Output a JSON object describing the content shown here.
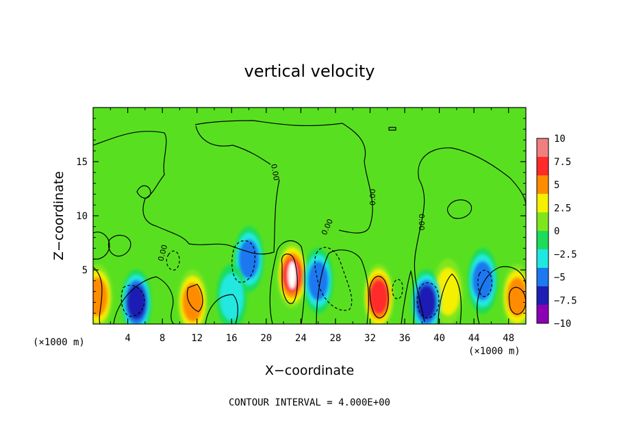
{
  "chart_data": {
    "type": "heatmap",
    "title": "vertical velocity",
    "xlabel": "X−coordinate",
    "ylabel": "Z−coordinate",
    "x_unit_left": "(×1000 m)",
    "x_unit_right": "(×1000 m)",
    "footer": "CONTOUR INTERVAL = 4.000E+00",
    "x_ticks": [
      4,
      8,
      12,
      16,
      20,
      24,
      28,
      32,
      36,
      40,
      44,
      48
    ],
    "x_tick_labels": [
      "4",
      "8",
      "12",
      "16",
      "20",
      "24",
      "28",
      "32",
      "36",
      "40",
      "44",
      "48"
    ],
    "y_ticks": [
      5,
      10,
      15
    ],
    "y_tick_labels": [
      "5",
      "10",
      "15"
    ],
    "xlim": [
      0,
      50
    ],
    "ylim": [
      0,
      20
    ],
    "colorbar": {
      "levels": [
        10,
        7.5,
        5,
        2.5,
        0,
        -2.5,
        -5,
        -7.5,
        -10
      ],
      "labels": [
        "10",
        "7.5",
        "5",
        "2.5",
        "0",
        "−2.5",
        "−5",
        "−7.5",
        "−10"
      ],
      "colors": [
        "#f08080",
        "#ff2a2a",
        "#ff8c00",
        "#f5f000",
        "#7fe61e",
        "#1edc5a",
        "#20e8e0",
        "#1e78f0",
        "#1e1eb4",
        "#8c00b4"
      ]
    },
    "contour_labels": [
      "0.00",
      "0.00",
      "0.00",
      "0.00",
      "0.00"
    ],
    "features": [
      {
        "type": "updraft",
        "x": 23,
        "z": 4.5,
        "value": 10
      },
      {
        "type": "updraft",
        "x": 33,
        "z": 2.5,
        "value": 8
      },
      {
        "type": "updraft",
        "x": 49,
        "z": 2.5,
        "value": 7
      },
      {
        "type": "updraft",
        "x": 0.5,
        "z": 2.5,
        "value": 6
      },
      {
        "type": "updraft",
        "x": 11.5,
        "z": 2,
        "value": 6
      },
      {
        "type": "updraft",
        "x": 41,
        "z": 3,
        "value": 5
      },
      {
        "type": "downdraft",
        "x": 5,
        "z": 2,
        "value": -8
      },
      {
        "type": "downdraft",
        "x": 18,
        "z": 6,
        "value": -6
      },
      {
        "type": "downdraft",
        "x": 26,
        "z": 4,
        "value": -7
      },
      {
        "type": "downdraft",
        "x": 38.5,
        "z": 2,
        "value": -8
      },
      {
        "type": "downdraft",
        "x": 45,
        "z": 4,
        "value": -6
      },
      {
        "type": "downdraft",
        "x": 16,
        "z": 2.5,
        "value": -4
      }
    ]
  }
}
